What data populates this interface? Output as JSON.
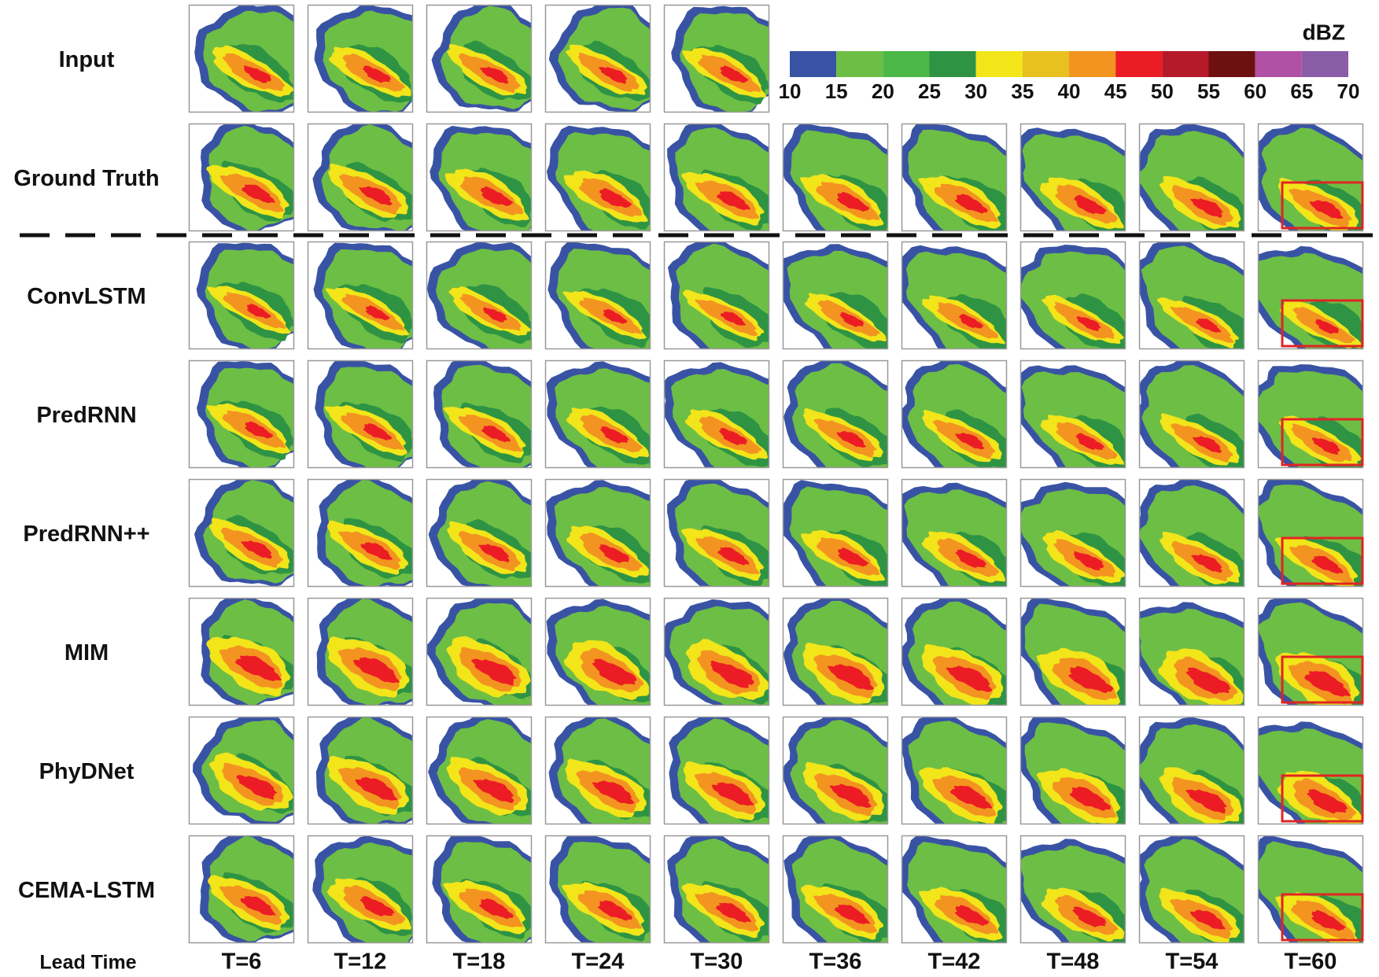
{
  "row_labels": [
    "Input",
    "Ground Truth",
    "ConvLSTM",
    "PredRNN",
    "PredRNN++",
    "MIM",
    "PhyDNet",
    "CEMA-LSTM"
  ],
  "lead_time_label": "Lead Time",
  "column_labels": [
    "T=6",
    "T=12",
    "T=18",
    "T=24",
    "T=30",
    "T=36",
    "T=42",
    "T=48",
    "T=54",
    "T=60"
  ],
  "colorbar": {
    "title": "dBZ",
    "ticks": [
      10,
      15,
      20,
      25,
      30,
      35,
      40,
      45,
      50,
      55,
      60,
      65,
      70
    ],
    "colors": [
      "#3953a4",
      "#6dbe45",
      "#4cb848",
      "#2e9444",
      "#f2e51a",
      "#e8c020",
      "#f39421",
      "#ec1c24",
      "#b5192a",
      "#6d1010",
      "#b151a5",
      "#8b5ca8"
    ]
  }
}
